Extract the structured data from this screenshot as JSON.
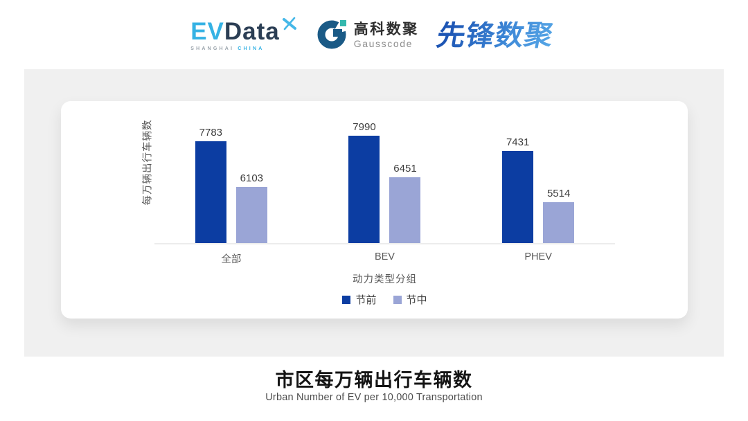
{
  "header": {
    "evdata": {
      "ev": "EV",
      "data": "Data",
      "sub_left": "SHANGHAI",
      "sub_right": "CHINA",
      "colors": {
        "ev": "#35b2e4",
        "data": "#2b3e54",
        "star": "#45b8e8",
        "sub_left": "#9aa3ab",
        "sub_right": "#35b2e4"
      }
    },
    "gausscode": {
      "zh": "高科数聚",
      "en": "Gausscode",
      "colors": {
        "mark": "#1a5a86",
        "accent": "#33b8ae",
        "zh": "#2f2f2f",
        "en": "#8c8c8c"
      }
    },
    "pioneer": {
      "text": "先锋数聚",
      "colors": {
        "from": "#1d55b4",
        "to": "#56a6e6"
      }
    }
  },
  "chart_data": {
    "type": "bar",
    "categories": [
      "全部",
      "BEV",
      "PHEV"
    ],
    "series": [
      {
        "name": "节前",
        "color": "#0c3da2",
        "values": [
          7783,
          7990,
          7431
        ]
      },
      {
        "name": "节中",
        "color": "#9aa5d6",
        "values": [
          6103,
          6451,
          5514
        ]
      }
    ],
    "title": "市区每万辆出行车辆数",
    "subtitle": "Urban Number of EV per 10,000 Transportation",
    "xlabel": "动力类型分组",
    "ylabel": "每万辆出行车辆数",
    "ylim": [
      4000,
      8900
    ],
    "grid": false,
    "legend_position": "bottom",
    "value_labels": true
  },
  "footer": {
    "title": "市区每万辆出行车辆数",
    "subtitle": "Urban Number of EV per 10,000 Transportation"
  },
  "panel_colors": {
    "panel_bg": "#f0f0f0",
    "card_bg": "#ffffff",
    "axis_line": "#ececec"
  }
}
